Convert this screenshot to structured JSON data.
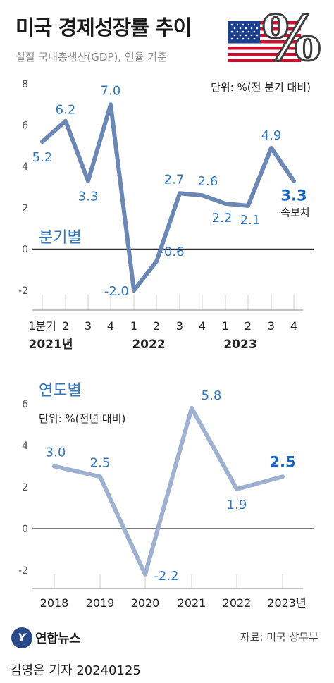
{
  "title": "미국 경제성장률 추이",
  "subtitle": "실질 국내총생산(GDP), 연율 기준",
  "chart_data": [
    {
      "type": "line",
      "label": "분기별",
      "unit_note": "단위: %(전 분기 대비)",
      "categories": [
        "1분기",
        "2",
        "3",
        "4",
        "1",
        "2",
        "3",
        "4",
        "1",
        "2",
        "3",
        "4"
      ],
      "year_labels": [
        "2021년",
        "2022",
        "2023"
      ],
      "values": [
        5.2,
        6.2,
        3.3,
        7.0,
        -2.0,
        -0.6,
        2.7,
        2.6,
        2.2,
        2.1,
        4.9,
        3.3
      ],
      "value_labels": [
        "5.2",
        "6.2",
        "3.3",
        "7.0",
        "-2.0",
        "-0.6",
        "2.7",
        "2.6",
        "2.2",
        "2.1",
        "4.9",
        "3.3"
      ],
      "highlight_note": "속보치",
      "ylim": [
        -2,
        8
      ],
      "yticks": [
        "8",
        "6",
        "4",
        "2",
        "0",
        "-2"
      ],
      "color": "#6b88b5"
    },
    {
      "type": "line",
      "label": "연도별",
      "unit_note": "단위: %(전년 대비)",
      "categories": [
        "2018",
        "2019",
        "2020",
        "2021",
        "2022",
        "2023년"
      ],
      "values": [
        3.0,
        2.5,
        -2.2,
        5.8,
        1.9,
        2.5
      ],
      "value_labels": [
        "3.0",
        "2.5",
        "-2.2",
        "5.8",
        "1.9",
        "2.5"
      ],
      "ylim": [
        -2,
        6
      ],
      "yticks": [
        "6",
        "4",
        "2",
        "0",
        "-2"
      ],
      "color": "#9fb1d0"
    }
  ],
  "footer": {
    "logo_mark": "Y",
    "brand": "연합뉴스",
    "source": "자료: 미국 상무부",
    "byline": "김영은 기자  20240125"
  },
  "colors": {
    "label_blue": "#2f78c4",
    "highlight_blue": "#1565c0",
    "axis": "#444444",
    "grid": "#cfcfcf"
  }
}
